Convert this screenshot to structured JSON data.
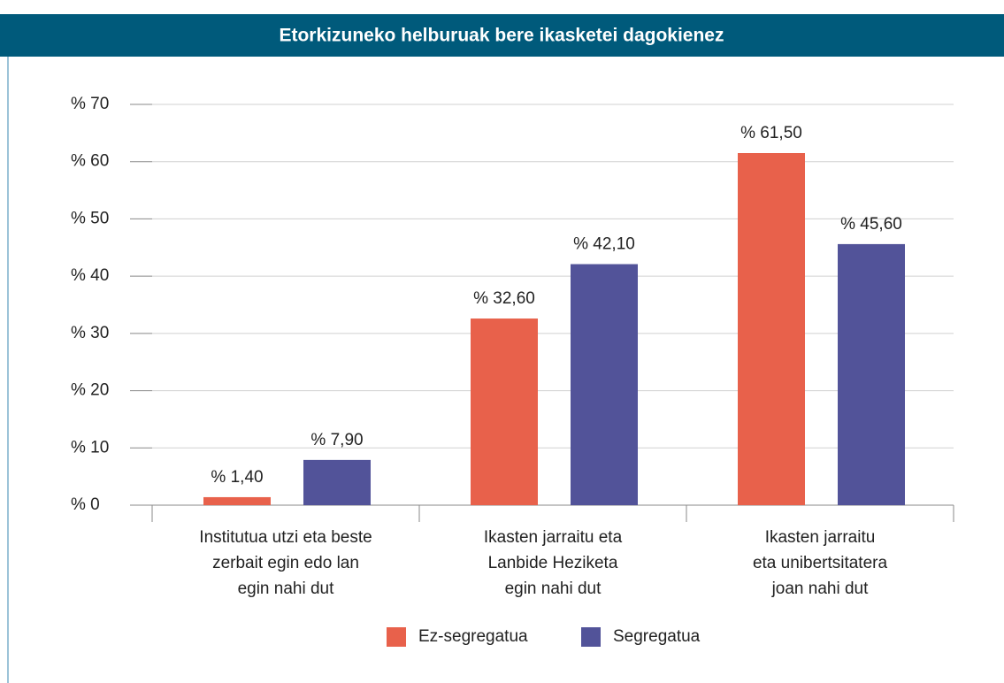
{
  "chart_data": {
    "type": "bar",
    "title": "Etorkizuneko helburuak bere ikasketei dagokienez",
    "categories": [
      [
        "Institutua utzi eta beste",
        "zerbait egin edo lan",
        "egin nahi dut"
      ],
      [
        "Ikasten jarraitu eta",
        "Lanbide Heziketa",
        "egin nahi dut"
      ],
      [
        "Ikasten jarraitu",
        "eta unibertsitatera",
        "joan nahi dut"
      ]
    ],
    "series": [
      {
        "name": "Ez-segregatua",
        "color": "#e8614b",
        "values": [
          1.4,
          32.6,
          61.5
        ],
        "value_labels": [
          "% 1,40",
          "% 32,60",
          "% 61,50"
        ]
      },
      {
        "name": "Segregatua",
        "color": "#525399",
        "values": [
          7.9,
          42.1,
          45.6
        ],
        "value_labels": [
          "% 7,90",
          "% 42,10",
          "% 45,60"
        ]
      }
    ],
    "ylim": [
      0,
      70
    ],
    "yticks": [
      {
        "value": 0,
        "label": "% 0"
      },
      {
        "value": 10,
        "label": "% 10"
      },
      {
        "value": 20,
        "label": "% 20"
      },
      {
        "value": 30,
        "label": "% 30"
      },
      {
        "value": 40,
        "label": "% 40"
      },
      {
        "value": 50,
        "label": "% 50"
      },
      {
        "value": 60,
        "label": "% 60"
      },
      {
        "value": 70,
        "label": "% 70"
      }
    ],
    "grid": true
  }
}
